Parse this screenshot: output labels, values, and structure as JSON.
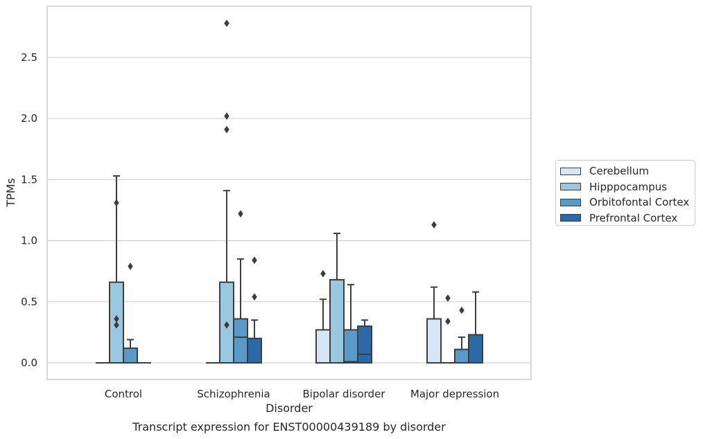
{
  "chart_data": {
    "type": "box",
    "title": "Transcript expression for ENST00000439189 by disorder",
    "xlabel": "Disorder",
    "ylabel": "TPMs",
    "ylim": [
      -0.13,
      2.92
    ],
    "yticks": [
      "0.0",
      "0.5",
      "1.0",
      "1.5",
      "2.0",
      "2.5"
    ],
    "grid": "horizontal",
    "legend_position": "center-right",
    "categories": [
      "Control",
      "Schizophrenia",
      "Bipolar disorder",
      "Major depression"
    ],
    "series": [
      {
        "name": "Cerebellum",
        "color": "#d6e6f4",
        "boxes": [
          {
            "min": 0,
            "q1": 0,
            "median": 0,
            "q3": 0,
            "max": 0,
            "outliers": []
          },
          {
            "min": 0,
            "q1": 0,
            "median": 0,
            "q3": 0,
            "max": 0,
            "outliers": []
          },
          {
            "min": 0,
            "q1": 0,
            "median": 0,
            "q3": 0.27,
            "max": 0.52,
            "outliers": [
              0.73
            ]
          },
          {
            "min": 0,
            "q1": 0,
            "median": 0,
            "q3": 0.36,
            "max": 0.62,
            "outliers": [
              1.13
            ]
          }
        ]
      },
      {
        "name": "Hipppocampus",
        "color": "#9ac8e0",
        "boxes": [
          {
            "min": 0,
            "q1": 0,
            "median": 0,
            "q3": 0.66,
            "max": 1.53,
            "outliers": [
              1.31,
              0.36,
              0.31
            ]
          },
          {
            "min": 0,
            "q1": 0,
            "median": 0,
            "q3": 0.66,
            "max": 1.41,
            "outliers": [
              2.78,
              2.02,
              1.91,
              0.31
            ]
          },
          {
            "min": 0,
            "q1": 0,
            "median": 0,
            "q3": 0.68,
            "max": 1.06,
            "outliers": []
          },
          {
            "min": 0,
            "q1": 0,
            "median": 0,
            "q3": 0,
            "max": 0,
            "outliers": [
              0.53,
              0.34
            ]
          }
        ]
      },
      {
        "name": "Orbitofontal Cortex",
        "color": "#5a9ac9",
        "boxes": [
          {
            "min": 0,
            "q1": 0,
            "median": 0,
            "q3": 0.12,
            "max": 0.19,
            "outliers": [
              0.79
            ]
          },
          {
            "min": 0,
            "q1": 0,
            "median": 0.21,
            "q3": 0.36,
            "max": 0.85,
            "outliers": [
              1.22
            ]
          },
          {
            "min": 0,
            "q1": 0,
            "median": 0.01,
            "q3": 0.27,
            "max": 0.64,
            "outliers": []
          },
          {
            "min": 0,
            "q1": 0,
            "median": 0,
            "q3": 0.11,
            "max": 0.21,
            "outliers": [
              0.43
            ]
          }
        ]
      },
      {
        "name": "Prefrontal Cortex",
        "color": "#2b6aa6",
        "boxes": [
          {
            "min": 0,
            "q1": 0,
            "median": 0,
            "q3": 0,
            "max": 0,
            "outliers": []
          },
          {
            "min": 0,
            "q1": 0,
            "median": 0,
            "q3": 0.2,
            "max": 0.35,
            "outliers": [
              0.84,
              0.54
            ]
          },
          {
            "min": 0,
            "q1": 0,
            "median": 0.07,
            "q3": 0.3,
            "max": 0.35,
            "outliers": []
          },
          {
            "min": 0,
            "q1": 0,
            "median": 0,
            "q3": 0.23,
            "max": 0.58,
            "outliers": []
          }
        ]
      }
    ]
  }
}
